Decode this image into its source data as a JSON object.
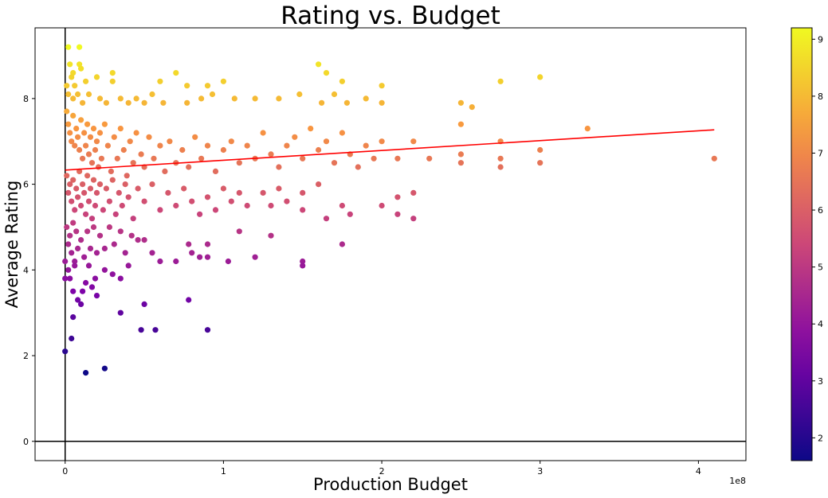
{
  "chart_data": {
    "type": "scatter",
    "title": "Rating vs. Budget",
    "xlabel": "Production Budget",
    "ylabel": "Average Rating",
    "x_offset_label": "1e8",
    "xlim": [
      -0.19,
      4.3
    ],
    "ylim": [
      -0.45,
      9.65
    ],
    "x_ticks": [
      0,
      1,
      2,
      3,
      4
    ],
    "y_ticks": [
      0,
      2,
      4,
      6,
      8
    ],
    "x_unit_note": "x values in units of 1e8",
    "grid": false,
    "reference_lines": [
      "x=0",
      "y=0"
    ],
    "colormap": "plasma",
    "colorbar": {
      "min": 1.6,
      "max": 9.2,
      "ticks": [
        2,
        3,
        4,
        5,
        6,
        7,
        8,
        9
      ]
    },
    "trendline": {
      "color": "#ff0000",
      "x": [
        0,
        4.1
      ],
      "y": [
        6.33,
        7.27
      ]
    },
    "points": [
      [
        0.02,
        9.2
      ],
      [
        0.09,
        9.2
      ],
      [
        0.03,
        8.8
      ],
      [
        0.09,
        8.8
      ],
      [
        0.05,
        8.6
      ],
      [
        0.1,
        8.7
      ],
      [
        0.04,
        8.5
      ],
      [
        0.01,
        8.3
      ],
      [
        0.06,
        8.3
      ],
      [
        0.13,
        8.4
      ],
      [
        0.2,
        8.5
      ],
      [
        0.3,
        8.6
      ],
      [
        0.3,
        8.4
      ],
      [
        0.6,
        8.4
      ],
      [
        0.7,
        8.6
      ],
      [
        0.77,
        8.3
      ],
      [
        0.9,
        8.3
      ],
      [
        1.0,
        8.4
      ],
      [
        1.6,
        8.8
      ],
      [
        1.65,
        8.6
      ],
      [
        1.75,
        8.4
      ],
      [
        2.0,
        8.3
      ],
      [
        2.75,
        8.4
      ],
      [
        3.0,
        8.5
      ],
      [
        0.02,
        8.1
      ],
      [
        0.05,
        8.0
      ],
      [
        0.08,
        8.1
      ],
      [
        0.11,
        7.9
      ],
      [
        0.15,
        8.1
      ],
      [
        0.22,
        8.0
      ],
      [
        0.26,
        7.9
      ],
      [
        0.35,
        8.0
      ],
      [
        0.4,
        7.9
      ],
      [
        0.45,
        8.0
      ],
      [
        0.5,
        7.9
      ],
      [
        0.55,
        8.1
      ],
      [
        0.62,
        7.9
      ],
      [
        0.77,
        7.9
      ],
      [
        0.86,
        8.0
      ],
      [
        0.93,
        8.1
      ],
      [
        1.07,
        8.0
      ],
      [
        1.2,
        8.0
      ],
      [
        1.35,
        8.0
      ],
      [
        1.48,
        8.1
      ],
      [
        1.62,
        7.9
      ],
      [
        1.7,
        8.1
      ],
      [
        1.78,
        7.9
      ],
      [
        1.9,
        8.0
      ],
      [
        2.0,
        7.9
      ],
      [
        2.5,
        7.9
      ],
      [
        2.57,
        7.8
      ],
      [
        2.5,
        7.4
      ],
      [
        3.3,
        7.3
      ],
      [
        0.01,
        7.7
      ],
      [
        0.02,
        7.4
      ],
      [
        0.03,
        7.2
      ],
      [
        0.04,
        7.0
      ],
      [
        0.05,
        7.6
      ],
      [
        0.06,
        6.9
      ],
      [
        0.07,
        7.3
      ],
      [
        0.08,
        7.1
      ],
      [
        0.09,
        6.8
      ],
      [
        0.1,
        7.5
      ],
      [
        0.11,
        6.6
      ],
      [
        0.12,
        7.2
      ],
      [
        0.13,
        6.9
      ],
      [
        0.14,
        7.4
      ],
      [
        0.15,
        6.7
      ],
      [
        0.16,
        7.1
      ],
      [
        0.17,
        6.5
      ],
      [
        0.18,
        7.3
      ],
      [
        0.19,
        6.8
      ],
      [
        0.2,
        7.0
      ],
      [
        0.21,
        6.4
      ],
      [
        0.22,
        7.2
      ],
      [
        0.23,
        6.6
      ],
      [
        0.25,
        7.4
      ],
      [
        0.27,
        6.9
      ],
      [
        0.29,
        6.3
      ],
      [
        0.31,
        7.1
      ],
      [
        0.33,
        6.6
      ],
      [
        0.35,
        7.3
      ],
      [
        0.37,
        6.8
      ],
      [
        0.39,
        6.2
      ],
      [
        0.41,
        7.0
      ],
      [
        0.43,
        6.5
      ],
      [
        0.45,
        7.2
      ],
      [
        0.48,
        6.7
      ],
      [
        0.5,
        6.4
      ],
      [
        0.53,
        7.1
      ],
      [
        0.56,
        6.6
      ],
      [
        0.6,
        6.9
      ],
      [
        0.63,
        6.3
      ],
      [
        0.66,
        7.0
      ],
      [
        0.7,
        6.5
      ],
      [
        0.74,
        6.8
      ],
      [
        0.78,
        6.4
      ],
      [
        0.82,
        7.1
      ],
      [
        0.86,
        6.6
      ],
      [
        0.9,
        6.9
      ],
      [
        0.95,
        6.3
      ],
      [
        1.0,
        6.8
      ],
      [
        1.05,
        7.0
      ],
      [
        1.1,
        6.5
      ],
      [
        1.15,
        6.9
      ],
      [
        1.2,
        6.6
      ],
      [
        1.25,
        7.2
      ],
      [
        1.3,
        6.7
      ],
      [
        1.35,
        6.4
      ],
      [
        1.4,
        6.9
      ],
      [
        1.45,
        7.1
      ],
      [
        1.5,
        6.6
      ],
      [
        1.55,
        7.3
      ],
      [
        1.6,
        6.8
      ],
      [
        1.65,
        7.0
      ],
      [
        1.7,
        6.5
      ],
      [
        1.75,
        7.2
      ],
      [
        1.8,
        6.7
      ],
      [
        1.85,
        6.4
      ],
      [
        1.9,
        6.9
      ],
      [
        1.95,
        6.6
      ],
      [
        2.0,
        7.0
      ],
      [
        2.1,
        6.6
      ],
      [
        2.2,
        7.0
      ],
      [
        2.3,
        6.6
      ],
      [
        2.5,
        6.7
      ],
      [
        2.5,
        6.5
      ],
      [
        2.75,
        7.0
      ],
      [
        2.75,
        6.6
      ],
      [
        2.75,
        6.4
      ],
      [
        3.0,
        6.8
      ],
      [
        3.0,
        6.5
      ],
      [
        4.1,
        6.6
      ],
      [
        0.01,
        6.2
      ],
      [
        0.02,
        5.8
      ],
      [
        0.03,
        6.0
      ],
      [
        0.04,
        5.6
      ],
      [
        0.05,
        6.1
      ],
      [
        0.06,
        5.4
      ],
      [
        0.07,
        5.9
      ],
      [
        0.08,
        5.7
      ],
      [
        0.09,
        6.3
      ],
      [
        0.1,
        5.5
      ],
      [
        0.11,
        6.0
      ],
      [
        0.12,
        5.8
      ],
      [
        0.13,
        5.3
      ],
      [
        0.14,
        6.2
      ],
      [
        0.15,
        5.6
      ],
      [
        0.16,
        5.9
      ],
      [
        0.17,
        5.2
      ],
      [
        0.18,
        6.1
      ],
      [
        0.19,
        5.5
      ],
      [
        0.2,
        5.8
      ],
      [
        0.22,
        6.0
      ],
      [
        0.24,
        5.4
      ],
      [
        0.26,
        5.9
      ],
      [
        0.28,
        5.6
      ],
      [
        0.3,
        6.1
      ],
      [
        0.32,
        5.3
      ],
      [
        0.34,
        5.8
      ],
      [
        0.36,
        5.5
      ],
      [
        0.38,
        6.0
      ],
      [
        0.4,
        5.7
      ],
      [
        0.43,
        5.2
      ],
      [
        0.46,
        5.9
      ],
      [
        0.5,
        5.6
      ],
      [
        0.55,
        6.0
      ],
      [
        0.6,
        5.4
      ],
      [
        0.65,
        5.8
      ],
      [
        0.7,
        5.5
      ],
      [
        0.75,
        5.9
      ],
      [
        0.8,
        5.6
      ],
      [
        0.85,
        5.3
      ],
      [
        0.9,
        5.7
      ],
      [
        0.95,
        5.4
      ],
      [
        1.0,
        5.9
      ],
      [
        1.05,
        5.6
      ],
      [
        1.1,
        5.8
      ],
      [
        1.15,
        5.5
      ],
      [
        1.25,
        5.8
      ],
      [
        1.3,
        5.5
      ],
      [
        1.35,
        5.9
      ],
      [
        1.4,
        5.6
      ],
      [
        1.5,
        5.8
      ],
      [
        1.5,
        5.4
      ],
      [
        1.6,
        6.0
      ],
      [
        1.65,
        5.2
      ],
      [
        1.75,
        5.5
      ],
      [
        1.8,
        5.3
      ],
      [
        2.0,
        5.5
      ],
      [
        2.1,
        5.7
      ],
      [
        2.1,
        5.3
      ],
      [
        2.2,
        5.8
      ],
      [
        2.2,
        5.2
      ],
      [
        1.1,
        4.9
      ],
      [
        1.2,
        4.3
      ],
      [
        1.3,
        4.8
      ],
      [
        1.5,
        4.2
      ],
      [
        1.5,
        4.1
      ],
      [
        1.75,
        4.6
      ],
      [
        0.01,
        5.0
      ],
      [
        0.02,
        4.6
      ],
      [
        0.03,
        4.8
      ],
      [
        0.04,
        4.4
      ],
      [
        0.05,
        5.1
      ],
      [
        0.06,
        4.2
      ],
      [
        0.07,
        4.9
      ],
      [
        0.08,
        4.5
      ],
      [
        0.1,
        4.7
      ],
      [
        0.12,
        4.3
      ],
      [
        0.14,
        4.9
      ],
      [
        0.16,
        4.5
      ],
      [
        0.18,
        5.0
      ],
      [
        0.2,
        4.4
      ],
      [
        0.22,
        4.8
      ],
      [
        0.25,
        4.5
      ],
      [
        0.28,
        5.0
      ],
      [
        0.31,
        4.6
      ],
      [
        0.35,
        4.9
      ],
      [
        0.38,
        4.4
      ],
      [
        0.42,
        4.8
      ],
      [
        0.46,
        4.7
      ],
      [
        0.5,
        4.7
      ],
      [
        0.55,
        4.4
      ],
      [
        0.6,
        4.2
      ],
      [
        0.7,
        4.2
      ],
      [
        0.78,
        4.6
      ],
      [
        0.8,
        4.4
      ],
      [
        0.85,
        4.3
      ],
      [
        0.9,
        4.6
      ],
      [
        0.9,
        4.3
      ],
      [
        1.03,
        4.2
      ],
      [
        0.0,
        4.2
      ],
      [
        0.0,
        3.8
      ],
      [
        0.02,
        4.0
      ],
      [
        0.03,
        3.8
      ],
      [
        0.05,
        3.5
      ],
      [
        0.06,
        4.1
      ],
      [
        0.08,
        3.3
      ],
      [
        0.1,
        3.2
      ],
      [
        0.11,
        3.5
      ],
      [
        0.13,
        3.7
      ],
      [
        0.15,
        4.1
      ],
      [
        0.17,
        3.6
      ],
      [
        0.19,
        3.8
      ],
      [
        0.2,
        3.4
      ],
      [
        0.25,
        4.0
      ],
      [
        0.3,
        3.9
      ],
      [
        0.35,
        3.0
      ],
      [
        0.35,
        3.8
      ],
      [
        0.4,
        4.1
      ],
      [
        0.5,
        3.2
      ],
      [
        0.78,
        3.3
      ],
      [
        0.05,
        2.9
      ],
      [
        0.04,
        2.4
      ],
      [
        0.48,
        2.6
      ],
      [
        0.57,
        2.6
      ],
      [
        0.9,
        2.6
      ],
      [
        0.0,
        2.1
      ],
      [
        0.13,
        1.6
      ],
      [
        0.25,
        1.7
      ]
    ]
  }
}
